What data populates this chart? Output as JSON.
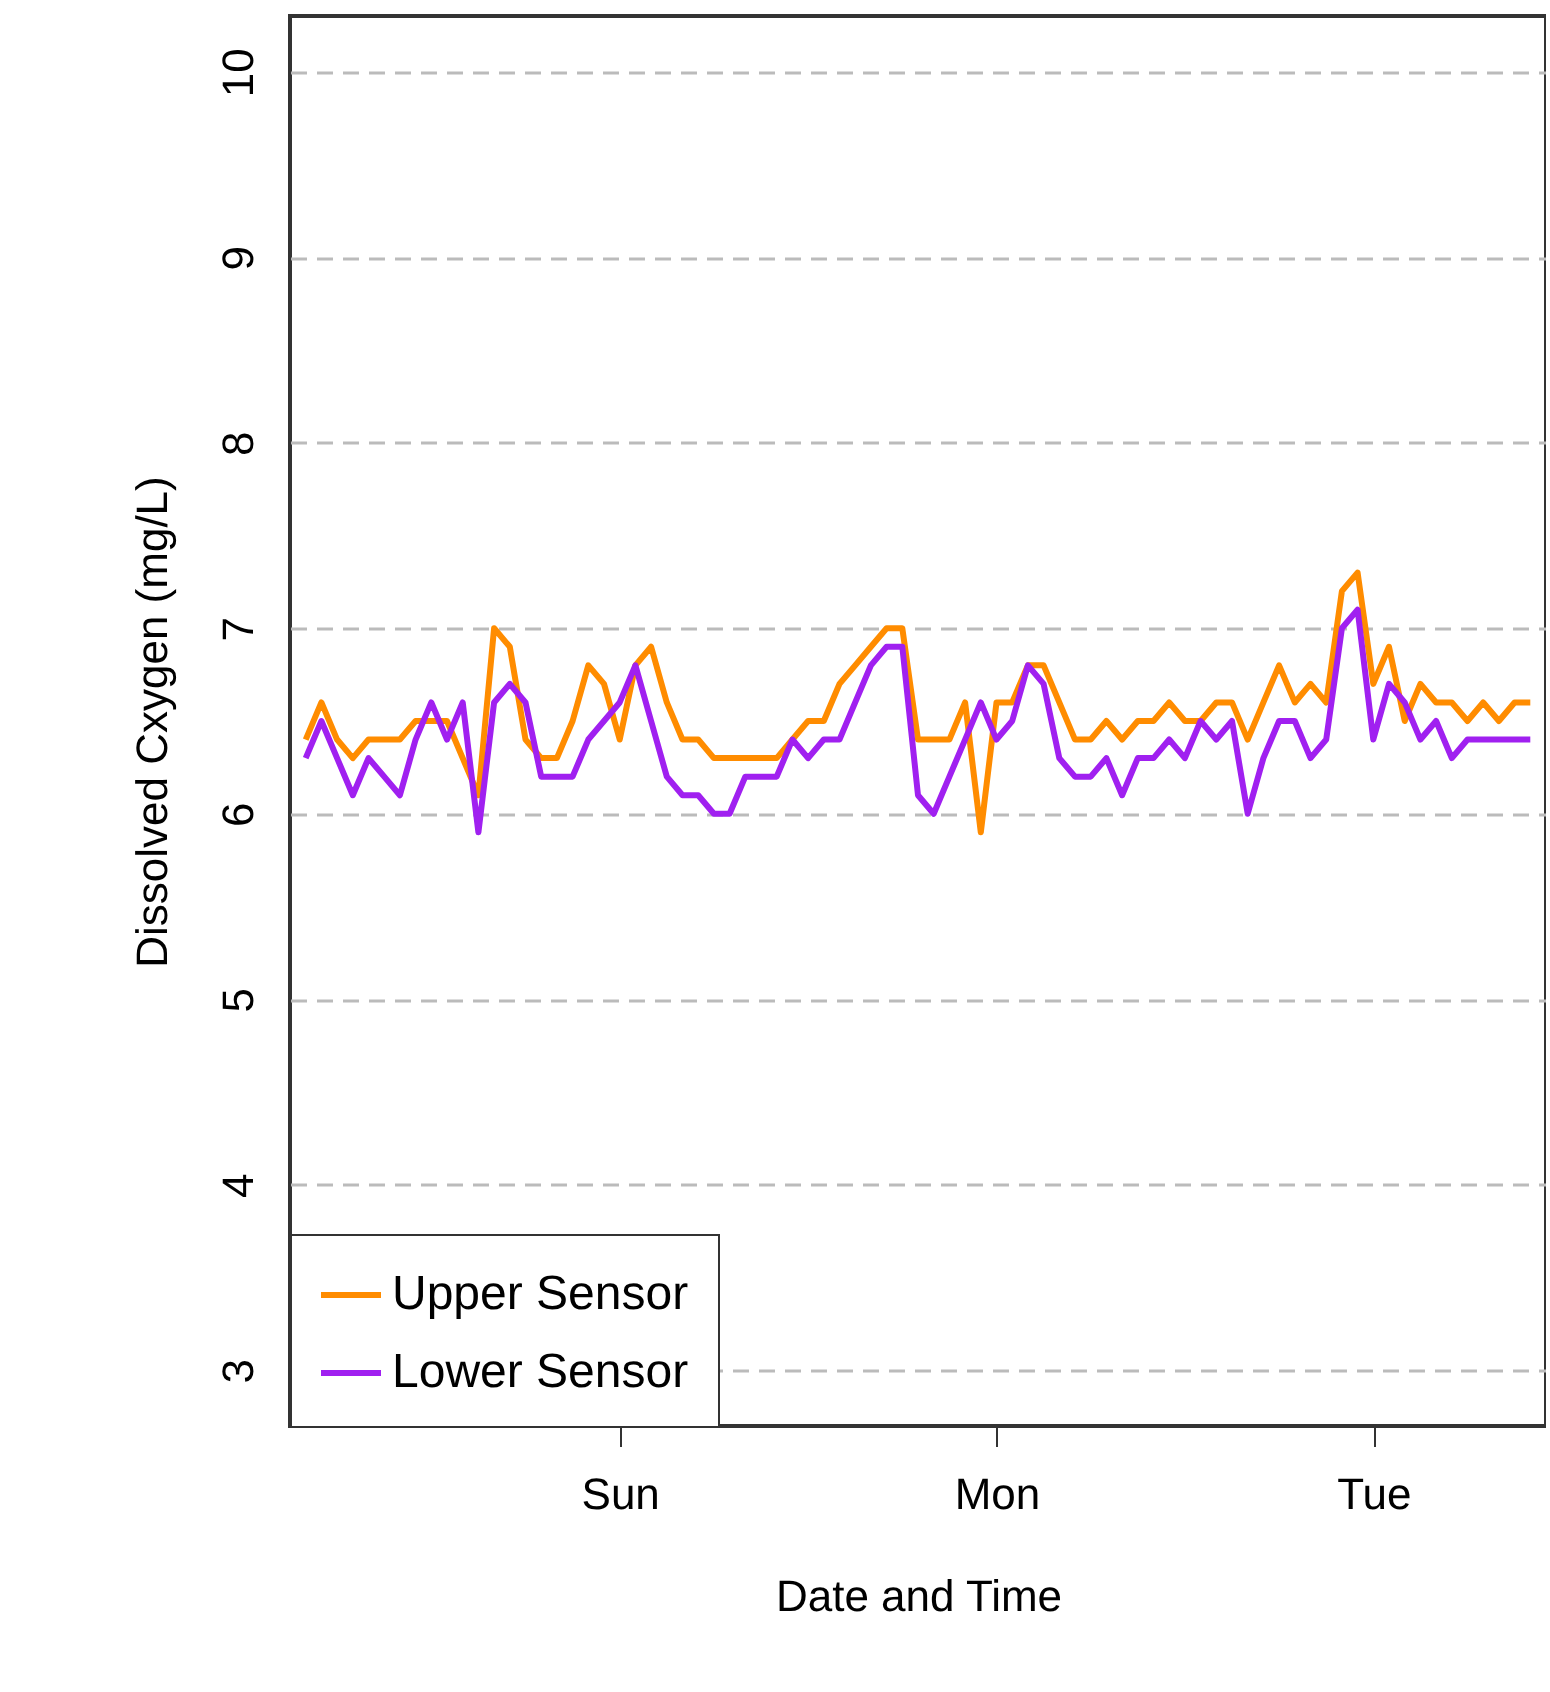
{
  "chart_data": {
    "type": "line",
    "xlabel": "Date and Time",
    "ylabel": "Dissolved Cxygen (mg/L)",
    "categories": [
      null,
      null,
      null,
      null,
      null,
      null,
      null,
      null,
      null,
      null,
      null,
      null,
      null,
      null,
      null,
      null,
      null,
      null,
      null,
      null,
      "Sun",
      null,
      null,
      null,
      null,
      null,
      null,
      null,
      null,
      null,
      null,
      null,
      null,
      null,
      null,
      null,
      null,
      null,
      null,
      null,
      null,
      null,
      null,
      null,
      "Mon",
      null,
      null,
      null,
      null,
      null,
      null,
      null,
      null,
      null,
      null,
      null,
      null,
      null,
      null,
      null,
      null,
      null,
      null,
      null,
      null,
      null,
      null,
      null,
      "Tue",
      null,
      null,
      null,
      null,
      null,
      null,
      null,
      null,
      null,
      null
    ],
    "ylim": [
      2.7,
      10.3
    ],
    "yticks": [
      3,
      4,
      5,
      6,
      7,
      8,
      9,
      10
    ],
    "grid": "y",
    "legend": "bottom left",
    "series": [
      {
        "name": "Upper Sensor",
        "color": "#ff8c00",
        "values": [
          6.4,
          6.6,
          6.4,
          6.3,
          6.4,
          6.4,
          6.4,
          6.5,
          6.5,
          6.5,
          6.3,
          6.1,
          7.0,
          6.9,
          6.4,
          6.3,
          6.3,
          6.5,
          6.8,
          6.7,
          6.4,
          6.8,
          6.9,
          6.6,
          6.4,
          6.4,
          6.3,
          6.3,
          6.3,
          6.3,
          6.3,
          6.4,
          6.5,
          6.5,
          6.7,
          6.8,
          6.9,
          7.0,
          7.0,
          6.4,
          6.4,
          6.4,
          6.6,
          5.9,
          6.6,
          6.6,
          6.8,
          6.8,
          6.6,
          6.4,
          6.4,
          6.5,
          6.4,
          6.5,
          6.5,
          6.6,
          6.5,
          6.5,
          6.6,
          6.6,
          6.4,
          6.6,
          6.8,
          6.6,
          6.7,
          6.6,
          7.2,
          7.3,
          6.7,
          6.9,
          6.5,
          6.7,
          6.6,
          6.6,
          6.5,
          6.6,
          6.5,
          6.6,
          6.6
        ]
      },
      {
        "name": "Lower Sensor",
        "color": "#a020f0",
        "values": [
          6.3,
          6.5,
          6.3,
          6.1,
          6.3,
          6.2,
          6.1,
          6.4,
          6.6,
          6.4,
          6.6,
          5.9,
          6.6,
          6.7,
          6.6,
          6.2,
          6.2,
          6.2,
          6.4,
          6.5,
          6.6,
          6.8,
          6.5,
          6.2,
          6.1,
          6.1,
          6.0,
          6.0,
          6.2,
          6.2,
          6.2,
          6.4,
          6.3,
          6.4,
          6.4,
          6.6,
          6.8,
          6.9,
          6.9,
          6.1,
          6.0,
          6.2,
          6.4,
          6.6,
          6.4,
          6.5,
          6.8,
          6.7,
          6.3,
          6.2,
          6.2,
          6.3,
          6.1,
          6.3,
          6.3,
          6.4,
          6.3,
          6.5,
          6.4,
          6.5,
          6.0,
          6.3,
          6.5,
          6.5,
          6.3,
          6.4,
          7.0,
          7.1,
          6.4,
          6.7,
          6.6,
          6.4,
          6.5,
          6.3,
          6.4,
          6.4,
          6.4,
          6.4,
          6.4
        ]
      }
    ]
  }
}
